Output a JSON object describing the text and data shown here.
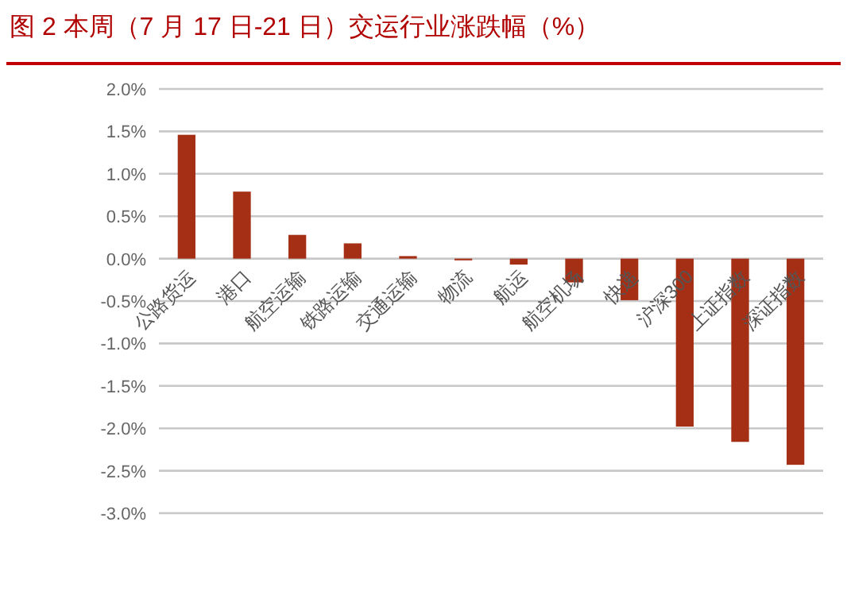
{
  "chart_data": {
    "type": "bar",
    "title": "图 2   本周（7 月 17 日-21 日）交运行业涨跌幅（%）",
    "categories": [
      "公路货运",
      "港口",
      "航空运输",
      "铁路运输",
      "交通运输",
      "物流",
      "航运",
      "航空机场",
      "快递",
      "沪深300",
      "上证指数",
      "深证指数"
    ],
    "values": [
      1.46,
      0.79,
      0.28,
      0.18,
      0.03,
      -0.02,
      -0.07,
      -0.28,
      -0.49,
      -1.98,
      -2.16,
      -2.43
    ],
    "color": "#a52f14",
    "ylim": [
      -3.0,
      2.0
    ],
    "yticks": [
      {
        "value": 2.0,
        "label": "2.0%"
      },
      {
        "value": 1.5,
        "label": "1.5%"
      },
      {
        "value": 1.0,
        "label": "1.0%"
      },
      {
        "value": 0.5,
        "label": "0.5%"
      },
      {
        "value": 0.0,
        "label": "0.0%"
      },
      {
        "value": -0.5,
        "label": "-0.5%"
      },
      {
        "value": -1.0,
        "label": "-1.0%"
      },
      {
        "value": -1.5,
        "label": "-1.5%"
      },
      {
        "value": -2.0,
        "label": "-2.0%"
      },
      {
        "value": -2.5,
        "label": "-2.5%"
      },
      {
        "value": -3.0,
        "label": "-3.0%"
      }
    ],
    "grid": "y"
  }
}
